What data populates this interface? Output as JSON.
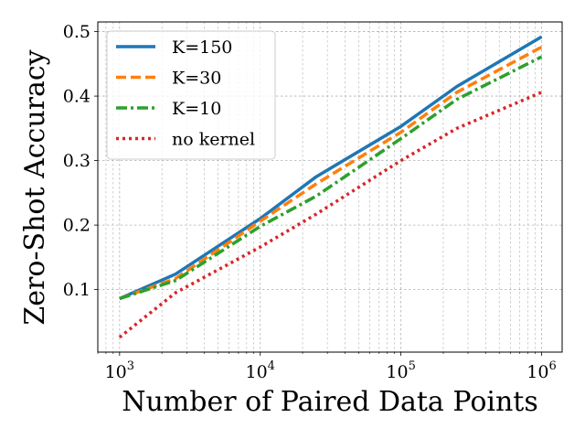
{
  "chart_data": {
    "type": "line",
    "xscale": "log",
    "xlabel": "Number of Paired Data Points",
    "ylabel": "Zero-Shot Accuracy",
    "xlim": [
      700,
      1400000
    ],
    "ylim": [
      0.003,
      0.515
    ],
    "grid": true,
    "legend_position": "top-left",
    "xticks": [
      {
        "value": 1000,
        "base": "10",
        "exp": "3"
      },
      {
        "value": 10000,
        "base": "10",
        "exp": "4"
      },
      {
        "value": 100000,
        "base": "10",
        "exp": "5"
      },
      {
        "value": 1000000,
        "base": "10",
        "exp": "6"
      }
    ],
    "yticks": [
      {
        "value": 0.1,
        "label": "0.1"
      },
      {
        "value": 0.2,
        "label": "0.2"
      },
      {
        "value": 0.3,
        "label": "0.3"
      },
      {
        "value": 0.4,
        "label": "0.4"
      },
      {
        "value": 0.5,
        "label": "0.5"
      }
    ],
    "series": [
      {
        "name": "K=150",
        "color": "#1f77b4",
        "dash": "solid",
        "x": [
          1000,
          2500,
          10000,
          25000,
          100000,
          250000,
          1000000
        ],
        "y": [
          0.086,
          0.124,
          0.21,
          0.275,
          0.353,
          0.415,
          0.492
        ]
      },
      {
        "name": "K=30",
        "color": "#ff7f0e",
        "dash": "dashed",
        "x": [
          1000,
          2500,
          10000,
          25000,
          100000,
          250000,
          1000000
        ],
        "y": [
          0.086,
          0.117,
          0.206,
          0.264,
          0.344,
          0.406,
          0.476
        ]
      },
      {
        "name": "K=10",
        "color": "#2ca02c",
        "dash": "dashdot",
        "x": [
          1000,
          2500,
          10000,
          25000,
          100000,
          250000,
          1000000
        ],
        "y": [
          0.086,
          0.114,
          0.198,
          0.245,
          0.334,
          0.395,
          0.461
        ]
      },
      {
        "name": "no kernel",
        "color": "#d62728",
        "dash": "dotted",
        "x": [
          1000,
          2500,
          10000,
          25000,
          100000,
          250000,
          1000000
        ],
        "y": [
          0.026,
          0.095,
          0.166,
          0.217,
          0.3,
          0.35,
          0.406
        ]
      }
    ]
  }
}
